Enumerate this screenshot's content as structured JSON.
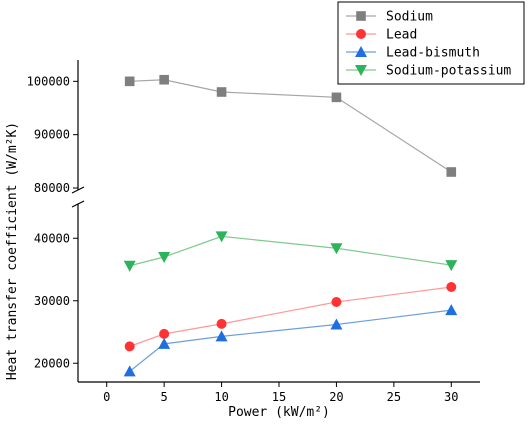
{
  "chart_data": {
    "type": "line",
    "xlabel": "Power (kW/m²)",
    "ylabel": "Heat transfer coefficient (W/m²K)",
    "x_ticks": [
      0,
      5,
      10,
      15,
      20,
      25,
      30
    ],
    "x_tick_labels": [
      "0",
      "5",
      "10",
      "15",
      "20",
      "25",
      "30"
    ],
    "xlim": [
      -2.5,
      32.5
    ],
    "y_axis_break": true,
    "y_upper_ticks": [
      80000,
      90000,
      100000
    ],
    "y_upper_tick_labels": [
      "80000",
      "90000",
      "100000"
    ],
    "y_upper_range": [
      80000,
      104000
    ],
    "y_lower_ticks": [
      20000,
      30000,
      40000
    ],
    "y_lower_tick_labels": [
      "20000",
      "30000",
      "40000"
    ],
    "y_lower_range": [
      17000,
      45000
    ],
    "grid": false,
    "legend_position": "top-right",
    "series": [
      {
        "name": "Sodium",
        "color": "#7f7f7f",
        "line_color": "#a6a6a6",
        "marker": "square",
        "x": [
          2,
          5,
          10,
          20,
          30
        ],
        "values": [
          100000,
          100300,
          98000,
          97000,
          83000
        ]
      },
      {
        "name": "Lead",
        "color": "#ff3333",
        "line_color": "#ff9999",
        "marker": "circle",
        "x": [
          2,
          5,
          10,
          20,
          30
        ],
        "values": [
          22700,
          24700,
          26300,
          29800,
          32200
        ]
      },
      {
        "name": "Lead-bismuth",
        "color": "#1f6fe0",
        "line_color": "#6f9fd8",
        "marker": "triangle-up",
        "x": [
          2,
          5,
          10,
          20,
          30
        ],
        "values": [
          18700,
          23100,
          24300,
          26200,
          28500
        ]
      },
      {
        "name": "Sodium-potassium",
        "color": "#2db35a",
        "line_color": "#7fc98f",
        "marker": "triangle-down",
        "x": [
          2,
          5,
          10,
          20,
          30
        ],
        "values": [
          35600,
          37000,
          40300,
          38400,
          35700
        ]
      }
    ]
  }
}
